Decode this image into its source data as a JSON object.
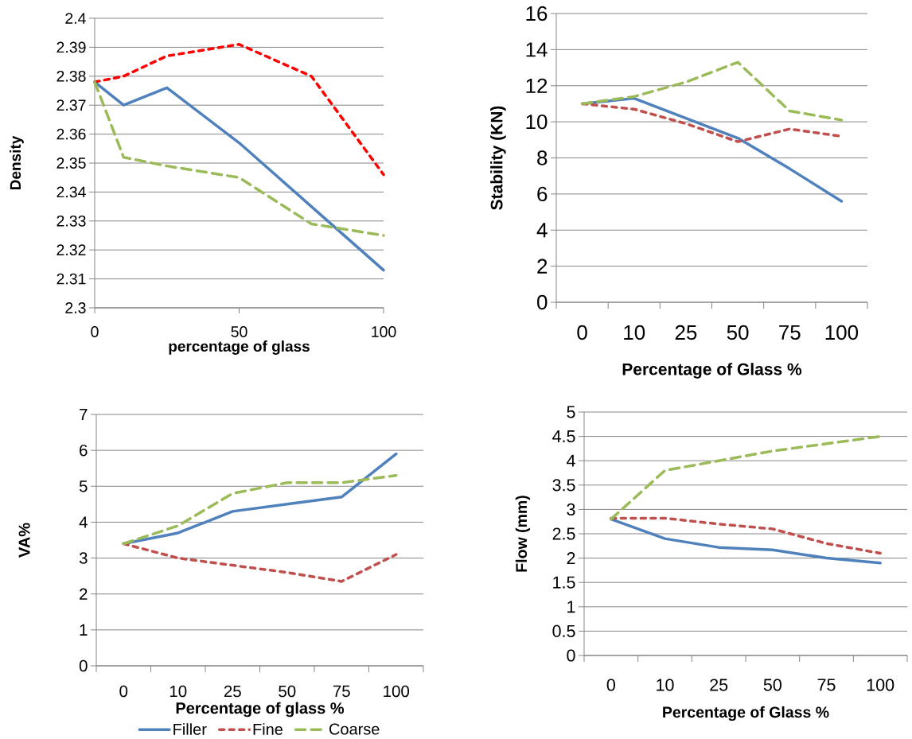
{
  "chart_data": [
    {
      "type": "line",
      "xlabel": "percentage of glass",
      "ylabel": "Density",
      "x": [
        0,
        10,
        25,
        50,
        75,
        100
      ],
      "xlim": [
        0,
        100
      ],
      "xticks": [
        0,
        50,
        100
      ],
      "ylim": [
        2.3,
        2.4
      ],
      "yticks": [
        2.3,
        2.31,
        2.32,
        2.33,
        2.34,
        2.35,
        2.36,
        2.37,
        2.38,
        2.39,
        2.4
      ],
      "grid": "y",
      "series": [
        {
          "color": "#4f81bd",
          "line_style": "solid",
          "values": [
            2.378,
            2.37,
            2.376,
            2.357,
            2.335,
            2.313
          ]
        },
        {
          "color": "#ff0000",
          "line_style": "dashed",
          "values": [
            2.378,
            2.38,
            2.387,
            2.391,
            2.38,
            2.346
          ]
        },
        {
          "color": "#9bbb59",
          "line_style": "dashed",
          "values": [
            2.378,
            2.352,
            2.349,
            2.345,
            2.329,
            2.325
          ]
        }
      ]
    },
    {
      "type": "line",
      "xlabel": "Percentage of Glass %",
      "ylabel": "Stability (KN)",
      "categories": [
        "0",
        "10",
        "25",
        "50",
        "75",
        "100"
      ],
      "ylim": [
        0,
        16
      ],
      "yticks": [
        0,
        2,
        4,
        6,
        8,
        10,
        12,
        14,
        16
      ],
      "grid": "y",
      "series": [
        {
          "color": "#4f81bd",
          "line_style": "solid",
          "values": [
            11,
            11.3,
            10.2,
            9.1,
            7.4,
            5.6
          ]
        },
        {
          "color": "#c0504d",
          "line_style": "dashed",
          "values": [
            11,
            10.7,
            9.9,
            8.9,
            9.6,
            9.2
          ]
        },
        {
          "color": "#9bbb59",
          "line_style": "dashed",
          "values": [
            11,
            11.4,
            12.2,
            13.3,
            10.6,
            10.1
          ]
        }
      ]
    },
    {
      "type": "line",
      "xlabel": "Percentage of glass %",
      "ylabel": "VA%",
      "categories": [
        "0",
        "10",
        "25",
        "50",
        "75",
        "100"
      ],
      "ylim": [
        0,
        7
      ],
      "yticks": [
        0,
        1,
        2,
        3,
        4,
        5,
        6,
        7
      ],
      "grid": "y",
      "legend": "bottom",
      "series": [
        {
          "name": "Filler",
          "color": "#4f81bd",
          "line_style": "solid",
          "values": [
            3.4,
            3.7,
            4.3,
            4.5,
            4.7,
            5.9
          ]
        },
        {
          "name": "Fine",
          "color": "#c0504d",
          "line_style": "dashed",
          "values": [
            3.4,
            3.0,
            2.8,
            2.6,
            2.35,
            3.1
          ]
        },
        {
          "name": "Coarse",
          "color": "#9bbb59",
          "line_style": "dashed",
          "values": [
            3.4,
            3.9,
            4.8,
            5.1,
            5.1,
            5.3
          ]
        }
      ]
    },
    {
      "type": "line",
      "xlabel": "Percentage of Glass %",
      "ylabel": "Flow (mm)",
      "categories": [
        "0",
        "10",
        "25",
        "50",
        "75",
        "100"
      ],
      "ylim": [
        0,
        5
      ],
      "yticks": [
        0,
        0.5,
        1,
        1.5,
        2,
        2.5,
        3,
        3.5,
        4,
        4.5,
        5
      ],
      "grid": "y",
      "series": [
        {
          "color": "#4f81bd",
          "line_style": "solid",
          "values": [
            2.8,
            2.4,
            2.22,
            2.17,
            2.0,
            1.9
          ]
        },
        {
          "color": "#c0504d",
          "line_style": "dashed",
          "values": [
            2.82,
            2.82,
            2.7,
            2.6,
            2.3,
            2.1
          ]
        },
        {
          "color": "#9bbb59",
          "line_style": "dashed",
          "values": [
            2.8,
            3.8,
            4.0,
            4.2,
            4.35,
            4.5
          ]
        }
      ]
    }
  ]
}
